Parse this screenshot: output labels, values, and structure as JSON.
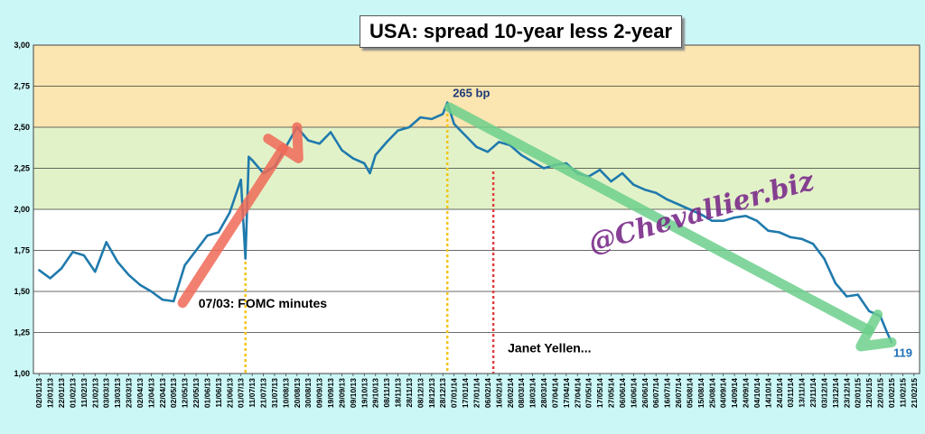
{
  "chart_data": {
    "type": "line",
    "title": "USA: spread 10-year less 2-year",
    "xlabel": "",
    "ylabel": "",
    "ylim": [
      1.0,
      3.0
    ],
    "yticks": [
      "1,00",
      "1,25",
      "1,50",
      "1,75",
      "2,00",
      "2,25",
      "2,50",
      "2,75",
      "3,00"
    ],
    "xticks": [
      "02/01/13",
      "12/01/13",
      "22/01/13",
      "01/02/13",
      "11/02/13",
      "21/02/13",
      "03/03/13",
      "13/03/13",
      "23/03/13",
      "02/04/13",
      "12/04/13",
      "22/04/13",
      "02/05/13",
      "12/05/13",
      "22/05/13",
      "01/06/13",
      "11/06/13",
      "21/06/13",
      "01/07/13",
      "11/07/13",
      "21/07/13",
      "31/07/13",
      "10/08/13",
      "20/08/13",
      "30/08/13",
      "09/09/13",
      "19/09/13",
      "29/09/13",
      "09/10/13",
      "19/10/13",
      "29/10/13",
      "08/11/13",
      "18/11/13",
      "28/11/13",
      "08/12/13",
      "18/12/13",
      "28/12/13",
      "07/01/14",
      "17/01/14",
      "27/01/14",
      "06/02/14",
      "16/02/14",
      "26/02/14",
      "08/03/14",
      "18/03/14",
      "28/03/14",
      "07/04/14",
      "17/04/14",
      "27/04/14",
      "07/05/14",
      "17/05/14",
      "27/05/14",
      "06/06/14",
      "16/06/14",
      "26/06/14",
      "06/07/14",
      "16/07/14",
      "26/07/14",
      "05/08/14",
      "15/08/14",
      "25/08/14",
      "04/09/14",
      "14/09/14",
      "24/09/14",
      "04/10/14",
      "14/10/14",
      "24/10/14",
      "03/11/14",
      "13/11/14",
      "23/11/14",
      "03/12/14",
      "13/12/14",
      "23/12/14",
      "02/01/15",
      "12/01/15",
      "22/01/15",
      "01/02/15",
      "11/02/15",
      "21/02/15"
    ],
    "bands": [
      {
        "from": 2.5,
        "to": 3.0,
        "color": "#fbe5b0"
      },
      {
        "from": 2.0,
        "to": 2.5,
        "color": "#e2f2c8"
      },
      {
        "from": 1.0,
        "to": 2.0,
        "color": "#ffffff"
      }
    ],
    "series": [
      {
        "color": "#1f7aad",
        "points": [
          [
            0,
            1.63
          ],
          [
            1,
            1.58
          ],
          [
            2,
            1.64
          ],
          [
            3,
            1.74
          ],
          [
            4,
            1.72
          ],
          [
            5,
            1.62
          ],
          [
            6,
            1.8
          ],
          [
            7,
            1.68
          ],
          [
            8,
            1.6
          ],
          [
            9,
            1.54
          ],
          [
            10,
            1.5
          ],
          [
            11,
            1.45
          ],
          [
            12,
            1.44
          ],
          [
            13,
            1.66
          ],
          [
            14,
            1.75
          ],
          [
            15,
            1.84
          ],
          [
            16,
            1.86
          ],
          [
            17,
            1.98
          ],
          [
            18,
            2.18
          ],
          [
            18.4,
            1.7
          ],
          [
            18.7,
            2.32
          ],
          [
            19,
            2.3
          ],
          [
            20,
            2.22
          ],
          [
            21,
            2.26
          ],
          [
            22,
            2.38
          ],
          [
            23,
            2.5
          ],
          [
            24,
            2.42
          ],
          [
            25,
            2.4
          ],
          [
            26,
            2.47
          ],
          [
            27,
            2.36
          ],
          [
            28,
            2.31
          ],
          [
            29,
            2.28
          ],
          [
            29.5,
            2.22
          ],
          [
            30,
            2.33
          ],
          [
            31,
            2.41
          ],
          [
            32,
            2.48
          ],
          [
            33,
            2.5
          ],
          [
            34,
            2.56
          ],
          [
            35,
            2.55
          ],
          [
            36,
            2.58
          ],
          [
            36.4,
            2.65
          ],
          [
            37,
            2.52
          ],
          [
            38,
            2.45
          ],
          [
            39,
            2.38
          ],
          [
            40,
            2.35
          ],
          [
            41,
            2.41
          ],
          [
            42,
            2.39
          ],
          [
            43,
            2.33
          ],
          [
            44,
            2.29
          ],
          [
            45,
            2.25
          ],
          [
            46,
            2.27
          ],
          [
            47,
            2.28
          ],
          [
            48,
            2.22
          ],
          [
            49,
            2.2
          ],
          [
            50,
            2.24
          ],
          [
            51,
            2.17
          ],
          [
            52,
            2.22
          ],
          [
            53,
            2.15
          ],
          [
            54,
            2.12
          ],
          [
            55,
            2.1
          ],
          [
            56,
            2.06
          ],
          [
            57,
            2.03
          ],
          [
            58,
            2.0
          ],
          [
            59,
            1.97
          ],
          [
            60,
            1.93
          ],
          [
            61,
            1.93
          ],
          [
            62,
            1.95
          ],
          [
            63,
            1.96
          ],
          [
            64,
            1.93
          ],
          [
            65,
            1.87
          ],
          [
            66,
            1.86
          ],
          [
            67,
            1.83
          ],
          [
            68,
            1.82
          ],
          [
            69,
            1.79
          ],
          [
            70,
            1.7
          ],
          [
            71,
            1.55
          ],
          [
            72,
            1.47
          ],
          [
            73,
            1.48
          ],
          [
            74,
            1.38
          ],
          [
            75,
            1.35
          ],
          [
            75.6,
            1.25
          ],
          [
            76,
            1.19
          ]
        ]
      }
    ],
    "annotations": [
      {
        "text": "265 bp",
        "x": 36.4,
        "y": 2.65
      },
      {
        "text": "07/03: FOMC minutes",
        "x": 18.4,
        "y": 1.4
      },
      {
        "text": "Janet Yellen...",
        "x": 40.5,
        "y": 1.13
      },
      {
        "text": "119",
        "x": 76,
        "y": 1.19
      }
    ],
    "vlines": [
      {
        "x": 18.4,
        "color": "#f3c418"
      },
      {
        "x": 36.4,
        "color": "#f3c418"
      },
      {
        "x": 40.5,
        "color": "#e04040"
      }
    ],
    "arrows": [
      {
        "from": [
          12.8,
          1.43
        ],
        "to": [
          23,
          2.5
        ],
        "color": "#f06a58"
      },
      {
        "from": [
          36.6,
          2.62
        ],
        "to": [
          76,
          1.19
        ],
        "color": "#6dd08c"
      }
    ],
    "watermark": "@Chevallier.biz",
    "grid": true,
    "legend": "none"
  }
}
